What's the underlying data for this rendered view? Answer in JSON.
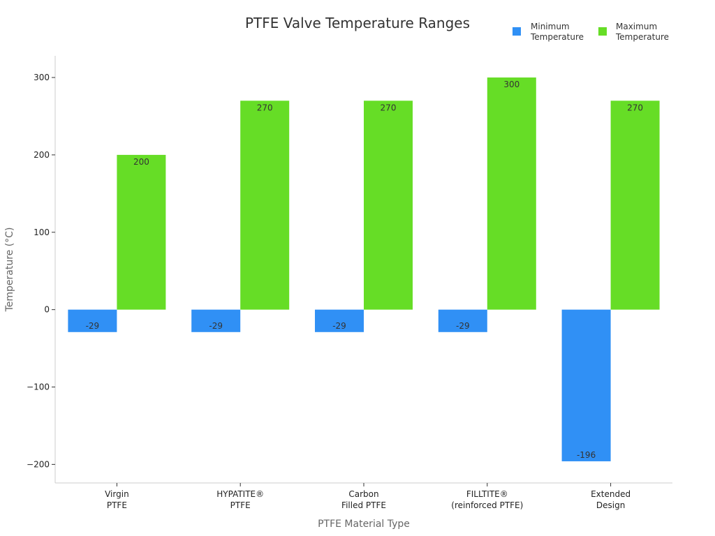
{
  "chart_data": {
    "type": "bar",
    "title": "PTFE Valve Temperature Ranges",
    "xlabel": "PTFE Material Type",
    "ylabel": "Temperature (°C)",
    "categories": [
      [
        "Virgin",
        "PTFE"
      ],
      [
        "HYPATITE®",
        "PTFE"
      ],
      [
        "Carbon",
        "Filled PTFE"
      ],
      [
        "FILLTITE®",
        "(reinforced PTFE)"
      ],
      [
        "Extended",
        "Design"
      ]
    ],
    "series": [
      {
        "name": [
          "Minimum",
          "Temperature"
        ],
        "color": "#3090f5",
        "values": [
          -29,
          -29,
          -29,
          -29,
          -196
        ]
      },
      {
        "name": [
          "Maximum",
          "Temperature"
        ],
        "color": "#66dd26",
        "values": [
          200,
          270,
          270,
          300,
          270
        ]
      }
    ],
    "ylim": [
      -224,
      328
    ],
    "yticks": [
      -200,
      -100,
      0,
      100,
      200,
      300
    ],
    "grid": false,
    "legend": "top-right"
  }
}
